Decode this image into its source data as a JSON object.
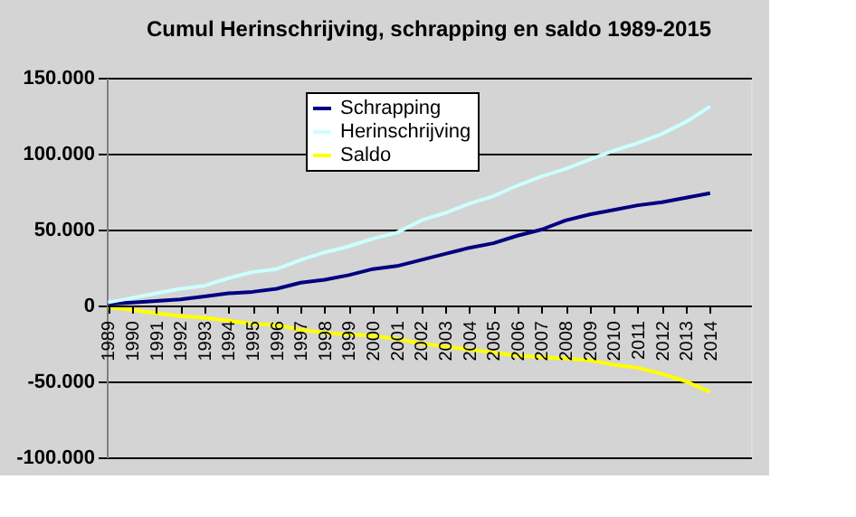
{
  "chart_data": {
    "type": "line",
    "title": "Cumul Herinschrijving, schrapping en saldo 1989-2015",
    "categories": [
      "1989",
      "1990",
      "1991",
      "1992",
      "1993",
      "1994",
      "1995",
      "1996",
      "1997",
      "1998",
      "1999",
      "2000",
      "2001",
      "2002",
      "2003",
      "2004",
      "2005",
      "2006",
      "2007",
      "2008",
      "2009",
      "2010",
      "2011",
      "2012",
      "2013",
      "2014"
    ],
    "series": [
      {
        "name": "Schrapping",
        "color": "#000080",
        "values": [
          1000,
          2000,
          3000,
          4000,
          6000,
          8000,
          9000,
          11000,
          15000,
          17000,
          20000,
          24000,
          26000,
          30000,
          34000,
          38000,
          41000,
          46000,
          50000,
          56000,
          60000,
          63000,
          66000,
          68000,
          71000,
          74000
        ]
      },
      {
        "name": "Herinschrijving",
        "color": "#ccffff",
        "values": [
          2000,
          5000,
          8000,
          11000,
          13000,
          18000,
          22000,
          24000,
          30000,
          35000,
          39000,
          44000,
          48000,
          56000,
          61000,
          67000,
          72000,
          79000,
          85000,
          90000,
          96000,
          102000,
          107000,
          113000,
          121000,
          131000
        ]
      },
      {
        "name": "Saldo",
        "color": "#ffff00",
        "values": [
          -1000,
          -3000,
          -5000,
          -7000,
          -8000,
          -10000,
          -12000,
          -13000,
          -16000,
          -18000,
          -19000,
          -20000,
          -22000,
          -25000,
          -27000,
          -29000,
          -31000,
          -33000,
          -34000,
          -35000,
          -36000,
          -39000,
          -41000,
          -45000,
          -50000,
          -57000
        ]
      }
    ],
    "ylim": [
      -100000,
      150000
    ],
    "yticks": [
      {
        "value": -100000,
        "label": "-100.000"
      },
      {
        "value": -50000,
        "label": "-50.000"
      },
      0,
      {
        "value": 50000,
        "label": "50.000"
      },
      {
        "value": 100000,
        "label": "100.000"
      },
      {
        "value": 150000,
        "label": "150.000"
      }
    ],
    "grid": "y",
    "legend": "top left",
    "marker": "none",
    "line_style": "solid"
  }
}
